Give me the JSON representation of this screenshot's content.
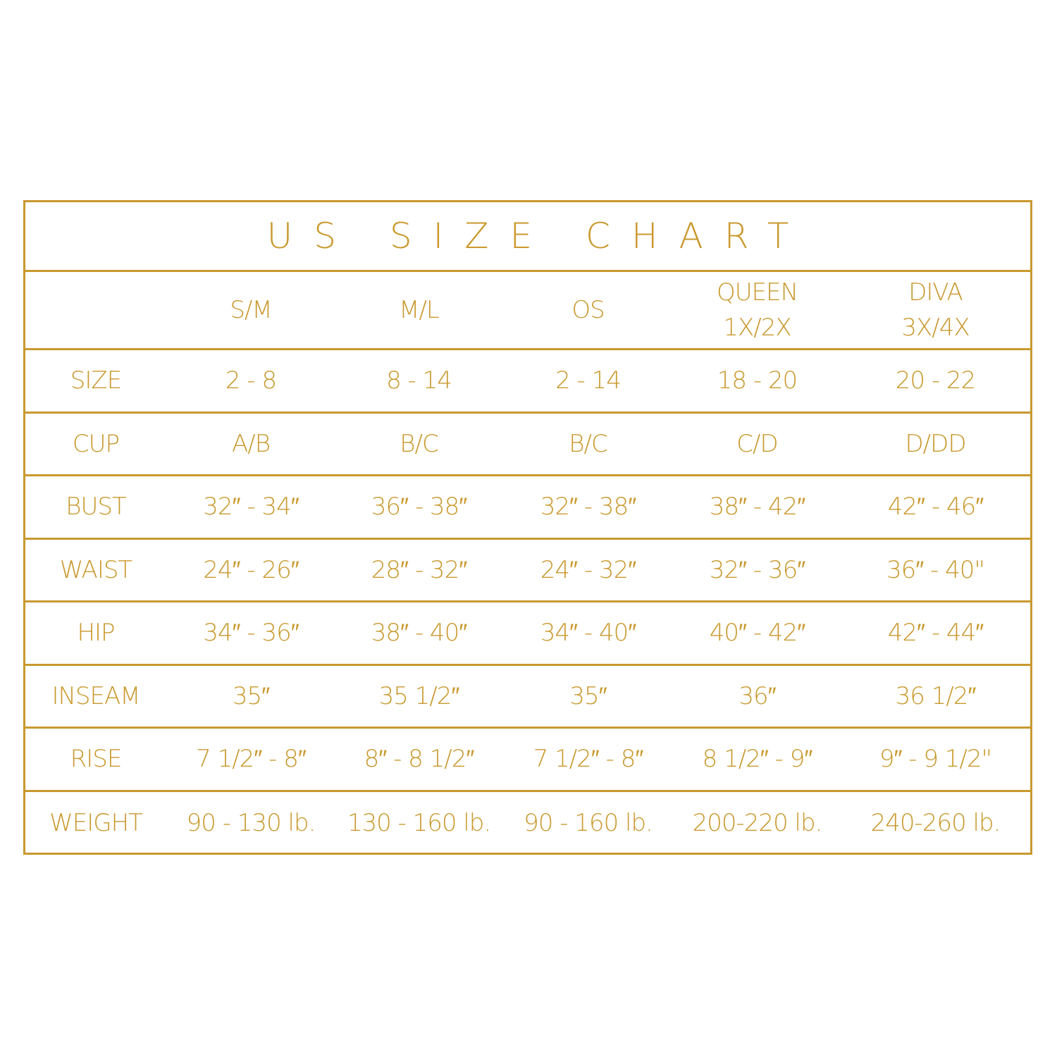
{
  "accent_color": "#c9992e",
  "title": "US SIZE CHART",
  "columns": [
    "",
    "S/M",
    "M/L",
    "OS",
    "QUEEN\n1X/2X",
    "DIVA\n3X/4X"
  ],
  "rows": [
    {
      "label": "SIZE",
      "values": [
        "2 - 8",
        "8 - 14",
        "2 - 14",
        "18 - 20",
        "20 - 22"
      ]
    },
    {
      "label": "CUP",
      "values": [
        "A/B",
        "B/C",
        "B/C",
        "C/D",
        "D/DD"
      ]
    },
    {
      "label": "BUST",
      "values": [
        "32″ - 34″",
        "36″ - 38″",
        "32″ - 38″",
        "38″ - 42″",
        "42″ - 46″"
      ]
    },
    {
      "label": "WAIST",
      "values": [
        "24″ - 26″",
        "28″ - 32″",
        "24″ - 32″",
        "32″ - 36″",
        "36″ - 40\""
      ]
    },
    {
      "label": "HIP",
      "values": [
        "34″ - 36″",
        "38″ - 40″",
        "34″ - 40″",
        "40″ - 42″",
        "42″ - 44″"
      ]
    },
    {
      "label": "INSEAM",
      "values": [
        "35″",
        "35 1/2″",
        "35″",
        "36″",
        "36 1/2″"
      ]
    },
    {
      "label": "RISE",
      "values": [
        "7 1/2″ - 8″",
        "8″ - 8 1/2″",
        "7 1/2″ - 8″",
        "8 1/2″ - 9″",
        "9″ - 9 1/2\""
      ]
    },
    {
      "label": "WEIGHT",
      "values": [
        "90 - 130 lb.",
        "130 - 160 lb.",
        "90 - 160 lb.",
        "200-220 lb.",
        "240-260 lb."
      ]
    }
  ]
}
